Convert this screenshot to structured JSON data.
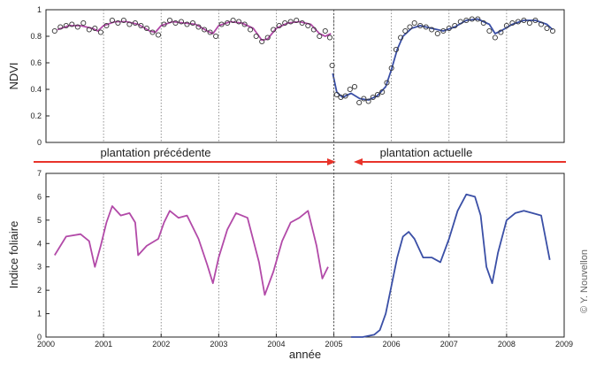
{
  "credit": "© Y. Nouvellon",
  "arrows": {
    "left_label": "plantation précédente",
    "right_label": "plantation actuelle",
    "color": "#e8332a"
  },
  "colors": {
    "previous_plantation": "#b24aa8",
    "current_plantation": "#3a4fa6",
    "marker_edge": "#333333",
    "divider": "#555555"
  },
  "chart_data": [
    {
      "type": "line",
      "ylabel": "NDVI",
      "xlabel": "",
      "xlim": [
        2000,
        2009
      ],
      "ylim": [
        0,
        1
      ],
      "yticks": [
        "0",
        "0.2",
        "0.4",
        "0.6",
        "0.8",
        "1"
      ],
      "vertical_gridlines_at": [
        2001,
        2002,
        2003,
        2004,
        2005,
        2006,
        2007,
        2008
      ],
      "grid": "dotted vertical at each year",
      "series": [
        {
          "style": "line",
          "color": "#b24aa8",
          "x": [
            2000.2,
            2000.4,
            2000.6,
            2000.8,
            2000.9,
            2001.0,
            2001.2,
            2001.4,
            2001.6,
            2001.8,
            2001.9,
            2002.0,
            2002.2,
            2002.4,
            2002.6,
            2002.8,
            2002.9,
            2003.0,
            2003.2,
            2003.4,
            2003.6,
            2003.75,
            2003.85,
            2004.0,
            2004.2,
            2004.4,
            2004.6,
            2004.75,
            2004.85,
            2004.95
          ],
          "y": [
            0.85,
            0.88,
            0.88,
            0.86,
            0.84,
            0.88,
            0.91,
            0.91,
            0.89,
            0.84,
            0.83,
            0.88,
            0.91,
            0.9,
            0.89,
            0.84,
            0.82,
            0.88,
            0.91,
            0.9,
            0.86,
            0.77,
            0.78,
            0.86,
            0.9,
            0.91,
            0.89,
            0.82,
            0.8,
            0.82
          ]
        },
        {
          "style": "line",
          "color": "#3a4fa6",
          "x": [
            2004.98,
            2005.05,
            2005.15,
            2005.3,
            2005.45,
            2005.6,
            2005.75,
            2005.9,
            2006.0,
            2006.1,
            2006.2,
            2006.35,
            2006.5,
            2006.7,
            2006.9,
            2007.1,
            2007.3,
            2007.5,
            2007.7,
            2007.8,
            2007.9,
            2008.1,
            2008.3,
            2008.5,
            2008.7,
            2008.8
          ],
          "y": [
            0.52,
            0.38,
            0.34,
            0.37,
            0.33,
            0.32,
            0.35,
            0.42,
            0.55,
            0.7,
            0.8,
            0.86,
            0.88,
            0.86,
            0.84,
            0.87,
            0.92,
            0.93,
            0.89,
            0.82,
            0.84,
            0.89,
            0.92,
            0.92,
            0.89,
            0.85
          ]
        },
        {
          "style": "markers",
          "marker": "open-circle",
          "x": [
            2000.15,
            2000.25,
            2000.35,
            2000.45,
            2000.55,
            2000.65,
            2000.75,
            2000.85,
            2000.95,
            2001.05,
            2001.15,
            2001.25,
            2001.35,
            2001.45,
            2001.55,
            2001.65,
            2001.75,
            2001.85,
            2001.95,
            2002.05,
            2002.15,
            2002.25,
            2002.35,
            2002.45,
            2002.55,
            2002.65,
            2002.75,
            2002.85,
            2002.95,
            2003.05,
            2003.15,
            2003.25,
            2003.35,
            2003.45,
            2003.55,
            2003.65,
            2003.75,
            2003.85,
            2003.95,
            2004.05,
            2004.15,
            2004.25,
            2004.35,
            2004.45,
            2004.55,
            2004.65,
            2004.75,
            2004.85,
            2004.93,
            2004.97,
            2005.05,
            2005.12,
            2005.2,
            2005.28,
            2005.36,
            2005.44,
            2005.52,
            2005.6,
            2005.68,
            2005.76,
            2005.84,
            2005.92,
            2006.0,
            2006.08,
            2006.16,
            2006.24,
            2006.32,
            2006.4,
            2006.5,
            2006.6,
            2006.7,
            2006.8,
            2006.9,
            2007.0,
            2007.1,
            2007.2,
            2007.3,
            2007.4,
            2007.5,
            2007.6,
            2007.7,
            2007.8,
            2007.9,
            2008.0,
            2008.1,
            2008.2,
            2008.3,
            2008.4,
            2008.5,
            2008.6,
            2008.7,
            2008.8
          ],
          "y": [
            0.84,
            0.87,
            0.88,
            0.89,
            0.87,
            0.9,
            0.85,
            0.86,
            0.83,
            0.88,
            0.92,
            0.9,
            0.92,
            0.89,
            0.9,
            0.88,
            0.86,
            0.83,
            0.81,
            0.89,
            0.92,
            0.9,
            0.91,
            0.89,
            0.9,
            0.87,
            0.85,
            0.83,
            0.8,
            0.89,
            0.9,
            0.92,
            0.91,
            0.89,
            0.85,
            0.8,
            0.76,
            0.79,
            0.85,
            0.88,
            0.9,
            0.91,
            0.92,
            0.9,
            0.88,
            0.85,
            0.8,
            0.84,
            0.79,
            0.58,
            0.36,
            0.34,
            0.35,
            0.4,
            0.42,
            0.3,
            0.33,
            0.31,
            0.34,
            0.36,
            0.38,
            0.45,
            0.56,
            0.7,
            0.79,
            0.84,
            0.87,
            0.9,
            0.88,
            0.87,
            0.85,
            0.82,
            0.84,
            0.86,
            0.88,
            0.91,
            0.92,
            0.93,
            0.93,
            0.9,
            0.84,
            0.79,
            0.83,
            0.88,
            0.9,
            0.91,
            0.92,
            0.9,
            0.92,
            0.89,
            0.86,
            0.84
          ]
        }
      ]
    },
    {
      "type": "line",
      "ylabel": "Indice foliaire",
      "xlabel": "année",
      "xlim": [
        2000,
        2009
      ],
      "ylim": [
        0,
        7
      ],
      "yticks": [
        "0",
        "1",
        "2",
        "3",
        "4",
        "5",
        "6",
        "7"
      ],
      "xticks": [
        "2000",
        "2001",
        "2002",
        "2003",
        "2004",
        "2005",
        "2006",
        "2007",
        "2008",
        "2009"
      ],
      "vertical_gridlines_at": [
        2001,
        2002,
        2003,
        2004,
        2005,
        2006,
        2007,
        2008
      ],
      "grid": "dotted vertical at each year",
      "series": [
        {
          "style": "line",
          "color": "#b24aa8",
          "x": [
            2000.15,
            2000.35,
            2000.6,
            2000.75,
            2000.85,
            2000.95,
            2001.05,
            2001.15,
            2001.3,
            2001.45,
            2001.55,
            2001.6,
            2001.75,
            2001.95,
            2002.05,
            2002.15,
            2002.3,
            2002.45,
            2002.65,
            2002.8,
            2002.9,
            2003.0,
            2003.15,
            2003.3,
            2003.5,
            2003.7,
            2003.8,
            2003.95,
            2004.1,
            2004.25,
            2004.4,
            2004.55,
            2004.7,
            2004.8,
            2004.9
          ],
          "y": [
            3.5,
            4.3,
            4.4,
            4.1,
            3.0,
            3.9,
            4.9,
            5.6,
            5.2,
            5.3,
            4.9,
            3.5,
            3.9,
            4.2,
            4.9,
            5.4,
            5.1,
            5.2,
            4.2,
            3.1,
            2.3,
            3.4,
            4.6,
            5.3,
            5.1,
            3.2,
            1.8,
            2.8,
            4.1,
            4.9,
            5.1,
            5.4,
            3.9,
            2.5,
            3.0
          ]
        },
        {
          "style": "line",
          "color": "#3a4fa6",
          "x": [
            2005.3,
            2005.5,
            2005.7,
            2005.8,
            2005.9,
            2006.0,
            2006.1,
            2006.2,
            2006.3,
            2006.4,
            2006.55,
            2006.7,
            2006.85,
            2007.0,
            2007.15,
            2007.3,
            2007.45,
            2007.55,
            2007.65,
            2007.75,
            2007.85,
            2008.0,
            2008.15,
            2008.3,
            2008.45,
            2008.6,
            2008.75
          ],
          "y": [
            0.0,
            0.0,
            0.1,
            0.3,
            1.0,
            2.2,
            3.4,
            4.3,
            4.5,
            4.2,
            3.4,
            3.4,
            3.2,
            4.2,
            5.4,
            6.1,
            6.0,
            5.2,
            3.0,
            2.3,
            3.6,
            5.0,
            5.3,
            5.4,
            5.3,
            5.2,
            3.3
          ]
        }
      ]
    }
  ]
}
